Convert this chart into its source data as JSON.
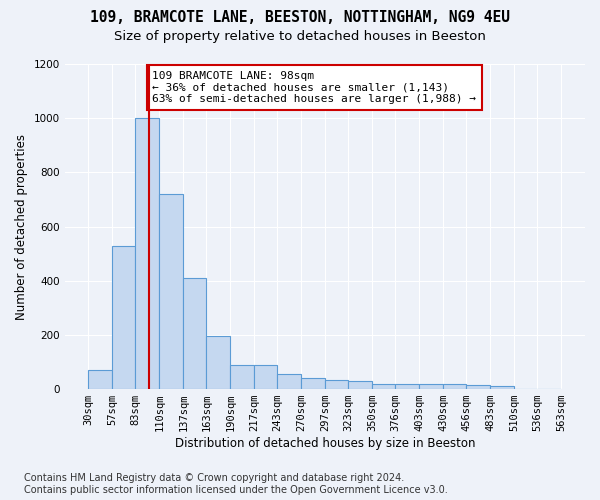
{
  "title_line1": "109, BRAMCOTE LANE, BEESTON, NOTTINGHAM, NG9 4EU",
  "title_line2": "Size of property relative to detached houses in Beeston",
  "xlabel": "Distribution of detached houses by size in Beeston",
  "ylabel": "Number of detached properties",
  "footer_line1": "Contains HM Land Registry data © Crown copyright and database right 2024.",
  "footer_line2": "Contains public sector information licensed under the Open Government Licence v3.0.",
  "bar_edges": [
    30,
    57,
    83,
    110,
    137,
    163,
    190,
    217,
    243,
    270,
    297,
    323,
    350,
    376,
    403,
    430,
    456,
    483,
    510,
    536,
    563
  ],
  "bar_values": [
    70,
    530,
    1000,
    720,
    410,
    197,
    90,
    88,
    55,
    40,
    32,
    30,
    20,
    20,
    18,
    18,
    15,
    12,
    0,
    0
  ],
  "bar_color": "#c5d8f0",
  "bar_edge_color": "#5b9bd5",
  "vline_x": 98,
  "vline_color": "#cc0000",
  "annotation_text": "109 BRAMCOTE LANE: 98sqm\n← 36% of detached houses are smaller (1,143)\n63% of semi-detached houses are larger (1,988) →",
  "annotation_box_color": "#ffffff",
  "annotation_box_edge": "#cc0000",
  "ylim": [
    0,
    1200
  ],
  "yticks": [
    0,
    200,
    400,
    600,
    800,
    1000,
    1200
  ],
  "background_color": "#eef2f9",
  "grid_color": "#ffffff",
  "title_fontsize": 10.5,
  "subtitle_fontsize": 9.5,
  "axis_label_fontsize": 8.5,
  "tick_fontsize": 7.5,
  "footer_fontsize": 7,
  "annotation_fontsize": 8
}
